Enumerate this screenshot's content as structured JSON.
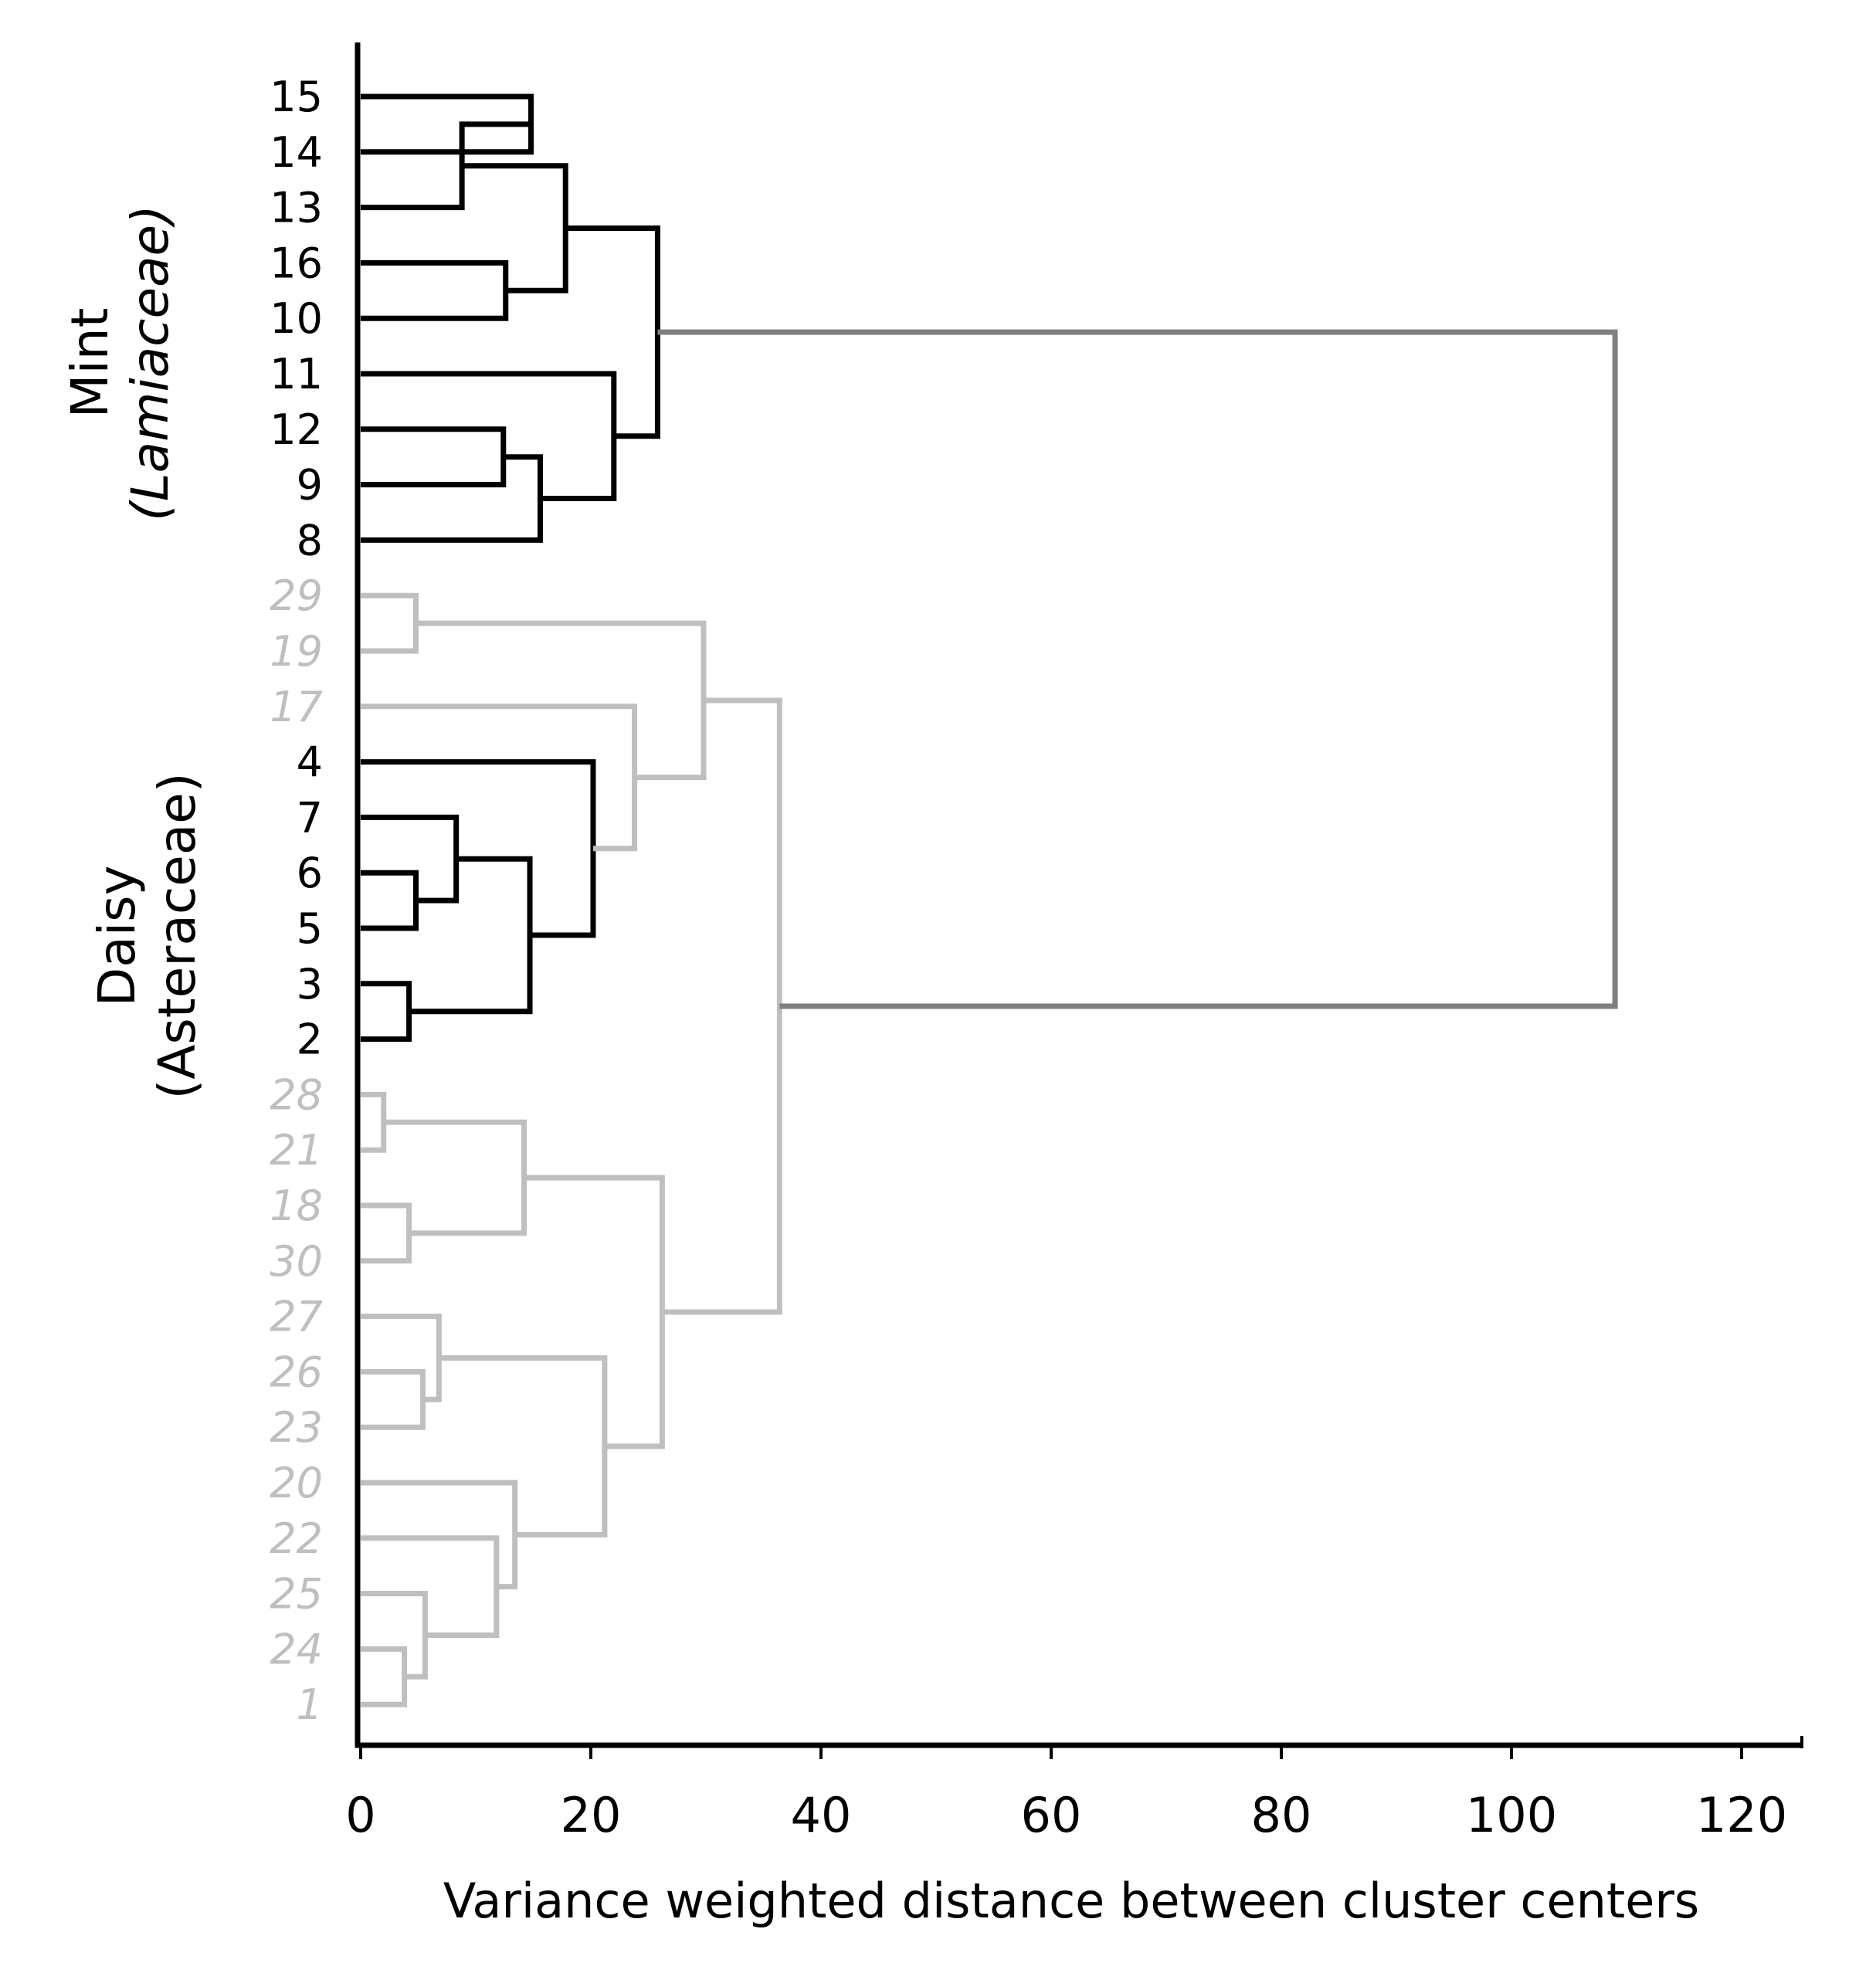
{
  "chart_data": {
    "type": "dendrogram",
    "title": "",
    "xlabel": "Variance weighted distance between cluster centers",
    "ylabel": "",
    "xlim": [
      0,
      125
    ],
    "xticks": [
      0,
      20,
      40,
      60,
      80,
      100,
      120
    ],
    "xtick_labels": [
      "0",
      "20",
      "40",
      "60",
      "80",
      "100",
      "120"
    ],
    "colors": {
      "mint": "#000000",
      "daisy_core": "#000000",
      "daisy_other": "#bfbfbf",
      "root": "#7f7f7f",
      "axis": "#000000"
    },
    "leaves": [
      {
        "label": "15",
        "group": "mint"
      },
      {
        "label": "14",
        "group": "mint"
      },
      {
        "label": "13",
        "group": "mint"
      },
      {
        "label": "16",
        "group": "mint"
      },
      {
        "label": "10",
        "group": "mint"
      },
      {
        "label": "11",
        "group": "mint"
      },
      {
        "label": "12",
        "group": "mint"
      },
      {
        "label": "9",
        "group": "mint"
      },
      {
        "label": "8",
        "group": "mint"
      },
      {
        "label": "29",
        "group": "daisy_other"
      },
      {
        "label": "19",
        "group": "daisy_other"
      },
      {
        "label": "17",
        "group": "daisy_other"
      },
      {
        "label": "4",
        "group": "daisy_core"
      },
      {
        "label": "7",
        "group": "daisy_core"
      },
      {
        "label": "6",
        "group": "daisy_core"
      },
      {
        "label": "5",
        "group": "daisy_core"
      },
      {
        "label": "3",
        "group": "daisy_core"
      },
      {
        "label": "2",
        "group": "daisy_core"
      },
      {
        "label": "28",
        "group": "daisy_other"
      },
      {
        "label": "21",
        "group": "daisy_other"
      },
      {
        "label": "18",
        "group": "daisy_other"
      },
      {
        "label": "30",
        "group": "daisy_other"
      },
      {
        "label": "27",
        "group": "daisy_other"
      },
      {
        "label": "26",
        "group": "daisy_other"
      },
      {
        "label": "23",
        "group": "daisy_other"
      },
      {
        "label": "20",
        "group": "daisy_other"
      },
      {
        "label": "22",
        "group": "daisy_other"
      },
      {
        "label": "25",
        "group": "daisy_other"
      },
      {
        "label": "24",
        "group": "daisy_other"
      },
      {
        "label": "1",
        "group": "daisy_other"
      }
    ],
    "merges": [
      {
        "id": "A",
        "a": "15",
        "b": "14",
        "height": 14.8,
        "color": "mint"
      },
      {
        "id": "B",
        "a": "13",
        "b": "A",
        "height": 8.8,
        "color": "mint"
      },
      {
        "id": "C",
        "a": "16",
        "b": "10",
        "height": 12.6,
        "color": "mint"
      },
      {
        "id": "D",
        "a": "B",
        "b": "C",
        "height": 17.8,
        "color": "mint"
      },
      {
        "id": "E",
        "a": "12",
        "b": "9",
        "height": 12.4,
        "color": "mint"
      },
      {
        "id": "F",
        "a": "E",
        "b": "8",
        "height": 15.6,
        "color": "mint"
      },
      {
        "id": "G",
        "a": "11",
        "b": "F",
        "height": 22.0,
        "color": "mint"
      },
      {
        "id": "MINT",
        "a": "D",
        "b": "G",
        "height": 25.8,
        "color": "mint"
      },
      {
        "id": "H",
        "a": "29",
        "b": "19",
        "height": 4.8,
        "color": "daisy_other"
      },
      {
        "id": "I",
        "a": "6",
        "b": "5",
        "height": 4.8,
        "color": "daisy_core"
      },
      {
        "id": "J",
        "a": "7",
        "b": "I",
        "height": 8.3,
        "color": "daisy_core"
      },
      {
        "id": "K",
        "a": "3",
        "b": "2",
        "height": 4.2,
        "color": "daisy_core"
      },
      {
        "id": "L",
        "a": "J",
        "b": "K",
        "height": 14.7,
        "color": "daisy_core"
      },
      {
        "id": "M",
        "a": "4",
        "b": "L",
        "height": 20.2,
        "color": "daisy_core"
      },
      {
        "id": "N",
        "a": "17",
        "b": "M",
        "height": 23.8,
        "color": "daisy_other"
      },
      {
        "id": "O",
        "a": "H",
        "b": "N",
        "height": 29.8,
        "color": "daisy_other"
      },
      {
        "id": "P",
        "a": "28",
        "b": "21",
        "height": 2.0,
        "color": "daisy_other"
      },
      {
        "id": "Q",
        "a": "18",
        "b": "30",
        "height": 4.2,
        "color": "daisy_other"
      },
      {
        "id": "R",
        "a": "P",
        "b": "Q",
        "height": 14.2,
        "color": "daisy_other"
      },
      {
        "id": "S",
        "a": "26",
        "b": "23",
        "height": 5.4,
        "color": "daisy_other"
      },
      {
        "id": "T",
        "a": "27",
        "b": "S",
        "height": 6.8,
        "color": "daisy_other"
      },
      {
        "id": "U",
        "a": "24",
        "b": "1",
        "height": 3.8,
        "color": "daisy_other"
      },
      {
        "id": "V",
        "a": "25",
        "b": "U",
        "height": 5.6,
        "color": "daisy_other"
      },
      {
        "id": "W",
        "a": "22",
        "b": "V",
        "height": 11.8,
        "color": "daisy_other"
      },
      {
        "id": "X",
        "a": "20",
        "b": "W",
        "height": 13.4,
        "color": "daisy_other"
      },
      {
        "id": "Y",
        "a": "T",
        "b": "X",
        "height": 21.2,
        "color": "daisy_other"
      },
      {
        "id": "Z",
        "a": "R",
        "b": "Y",
        "height": 26.2,
        "color": "daisy_other"
      },
      {
        "id": "DAISY",
        "a": "O",
        "b": "Z",
        "height": 36.4,
        "color": "daisy_other"
      },
      {
        "id": "ROOT",
        "a": "MINT",
        "b": "DAISY",
        "height": 109.0,
        "color": "root"
      }
    ],
    "group_labels": [
      {
        "id": "mint",
        "name": "Mint",
        "family": "(Lamiaceae)",
        "family_italic": true
      },
      {
        "id": "daisy",
        "name": "Daisy",
        "family": "(Asteraceae)",
        "family_italic": false
      }
    ]
  }
}
